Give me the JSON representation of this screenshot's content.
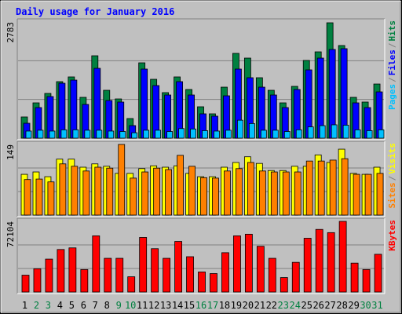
{
  "title": "Daily usage for January 2016",
  "legend_separator": "/",
  "chart_data": [
    {
      "type": "bar",
      "ylim": [
        0,
        2783
      ],
      "yticks": [
        2783
      ],
      "series": [
        {
          "name": "Hits",
          "color": "#008040",
          "values": [
            508,
            846,
            1072,
            1354,
            1467,
            978,
            1974,
            1147,
            940,
            470,
            1805,
            1410,
            1091,
            1467,
            1166,
            752,
            583,
            1222,
            2031,
            1918,
            1448,
            1147,
            846,
            1241,
            1862,
            2068,
            2764,
            2219,
            978,
            865,
            1297
          ]
        },
        {
          "name": "Files",
          "color": "#0000ff",
          "values": [
            357,
            733,
            997,
            1316,
            1391,
            808,
            1673,
            902,
            865,
            301,
            1655,
            1260,
            1034,
            1354,
            1034,
            583,
            527,
            1015,
            1655,
            1448,
            1222,
            1034,
            733,
            1166,
            1636,
            1918,
            2125,
            2144,
            846,
            733,
            1109
          ]
        },
        {
          "name": "Pages",
          "color": "#00c0ff",
          "values": [
            170,
            190,
            170,
            200,
            200,
            190,
            190,
            170,
            160,
            130,
            190,
            190,
            160,
            230,
            220,
            180,
            170,
            190,
            430,
            350,
            190,
            190,
            160,
            200,
            270,
            300,
            320,
            310,
            200,
            180,
            200
          ]
        }
      ]
    },
    {
      "type": "bar",
      "ylim": [
        0,
        149
      ],
      "yticks": [
        149
      ],
      "series": [
        {
          "name": "Visits",
          "color": "#ffff00",
          "values": [
            86,
            91,
            81,
            118,
            118,
            101,
            108,
            103,
            88,
            88,
            98,
            104,
            101,
            104,
            88,
            81,
            81,
            101,
            111,
            123,
            109,
            94,
            94,
            103,
            103,
            127,
            111,
            139,
            88,
            86,
            101
          ]
        },
        {
          "name": "Sites",
          "color": "#ff8000",
          "values": [
            75,
            76,
            70,
            108,
            103,
            93,
            101,
            99,
            149,
            78,
            91,
            99,
            96,
            126,
            103,
            79,
            78,
            93,
            98,
            111,
            93,
            91,
            91,
            91,
            114,
            114,
            116,
            119,
            86,
            86,
            88
          ]
        }
      ]
    },
    {
      "type": "bar",
      "ylim": [
        0,
        72104
      ],
      "yticks": [
        72104
      ],
      "categories": [
        "1",
        "2",
        "3",
        "4",
        "5",
        "6",
        "7",
        "8",
        "9",
        "10",
        "11",
        "12",
        "13",
        "14",
        "15",
        "16",
        "17",
        "18",
        "19",
        "20",
        "21",
        "22",
        "23",
        "24",
        "25",
        "26",
        "27",
        "28",
        "29",
        "30",
        "31"
      ],
      "category_colors": [
        "#000000",
        "#008040",
        "#008040",
        "#000000",
        "#000000",
        "#000000",
        "#000000",
        "#000000",
        "#008040",
        "#008040",
        "#000000",
        "#000000",
        "#000000",
        "#000000",
        "#000000",
        "#008040",
        "#008040",
        "#000000",
        "#000000",
        "#000000",
        "#000000",
        "#000000",
        "#008040",
        "#008040",
        "#000000",
        "#000000",
        "#000000",
        "#000000",
        "#000000",
        "#008040",
        "#008040"
      ],
      "series": [
        {
          "name": "KBytes",
          "color": "#ff0000",
          "values": [
            17214,
            23761,
            33594,
            43426,
            45065,
            22942,
            57356,
            34413,
            34413,
            15568,
            55717,
            44246,
            34413,
            51620,
            36052,
            20484,
            18845,
            40149,
            57356,
            58995,
            46704,
            34413,
            14749,
            30316,
            54898,
            63910,
            60633,
            72104,
            29497,
            22942,
            38510
          ]
        }
      ]
    }
  ]
}
